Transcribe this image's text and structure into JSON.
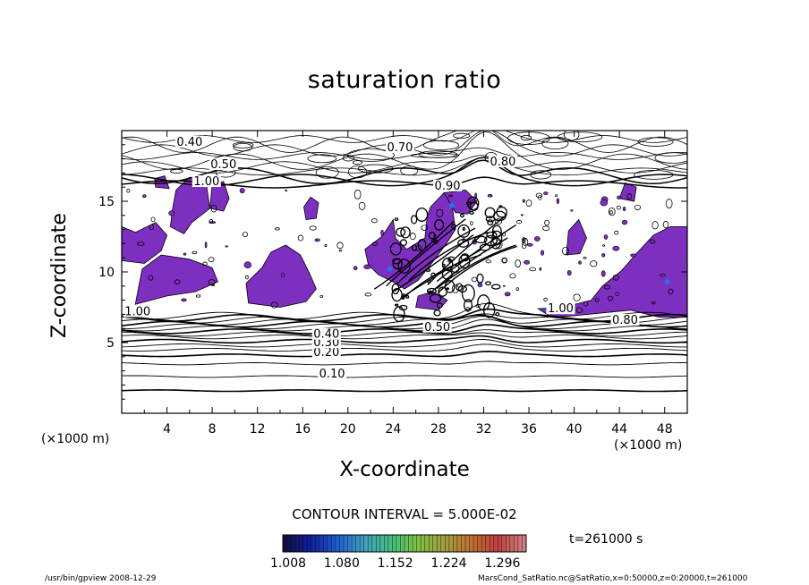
{
  "chart_data": {
    "type": "contour",
    "title": "saturation ratio",
    "xlabel": "X-coordinate",
    "ylabel": "Z-coordinate",
    "x_unit": "(×1000 m)",
    "y_unit": "(×1000 m)",
    "xlim": [
      0,
      50
    ],
    "ylim": [
      0,
      20
    ],
    "x_ticks": [
      4,
      8,
      12,
      16,
      20,
      24,
      28,
      32,
      36,
      40,
      44,
      48
    ],
    "y_ticks": [
      5,
      10,
      15
    ],
    "contour_interval_text": "CONTOUR INTERVAL = 5.000E-02",
    "colorbar": {
      "tick_labels": [
        "1.008",
        "1.080",
        "1.152",
        "1.224",
        "1.296"
      ],
      "min": 1.008,
      "max": 1.296,
      "colors": [
        "#101040",
        "#1020a0",
        "#2060d0",
        "#40a0c0",
        "#40c080",
        "#80c040",
        "#a0a040",
        "#c07030",
        "#c04040",
        "#d08080"
      ]
    },
    "contour_labels": [
      {
        "text": "0.10",
        "x": 18.6,
        "z": 2.6
      },
      {
        "text": "0.20",
        "x": 18.1,
        "z": 4.1
      },
      {
        "text": "0.30",
        "x": 18.1,
        "z": 4.8
      },
      {
        "text": "0.40",
        "x": 18.1,
        "z": 5.4
      },
      {
        "text": "0.50",
        "x": 27.9,
        "z": 5.9
      },
      {
        "text": "1.00",
        "x": 1.4,
        "z": 7.0
      },
      {
        "text": "0.40",
        "x": 6.0,
        "z": 19.0
      },
      {
        "text": "0.70",
        "x": 24.6,
        "z": 18.6
      },
      {
        "text": "0.80",
        "x": 33.7,
        "z": 17.6
      },
      {
        "text": "0.50",
        "x": 9.0,
        "z": 17.4
      },
      {
        "text": "0.90",
        "x": 28.8,
        "z": 15.9
      },
      {
        "text": "1.00",
        "x": 7.5,
        "z": 16.2
      },
      {
        "text": "1.00",
        "x": 38.8,
        "z": 7.2
      },
      {
        "text": "0.80",
        "x": 44.5,
        "z": 6.4
      }
    ],
    "supersaturated_color": "#7d2fbf",
    "time_label": "t=261000 s"
  },
  "footer": {
    "left": "/usr/bin/gpview   2008-12-29",
    "right": "MarsCond_SatRatio.nc@SatRatio,x=0:50000,z=0:20000,t=261000"
  }
}
